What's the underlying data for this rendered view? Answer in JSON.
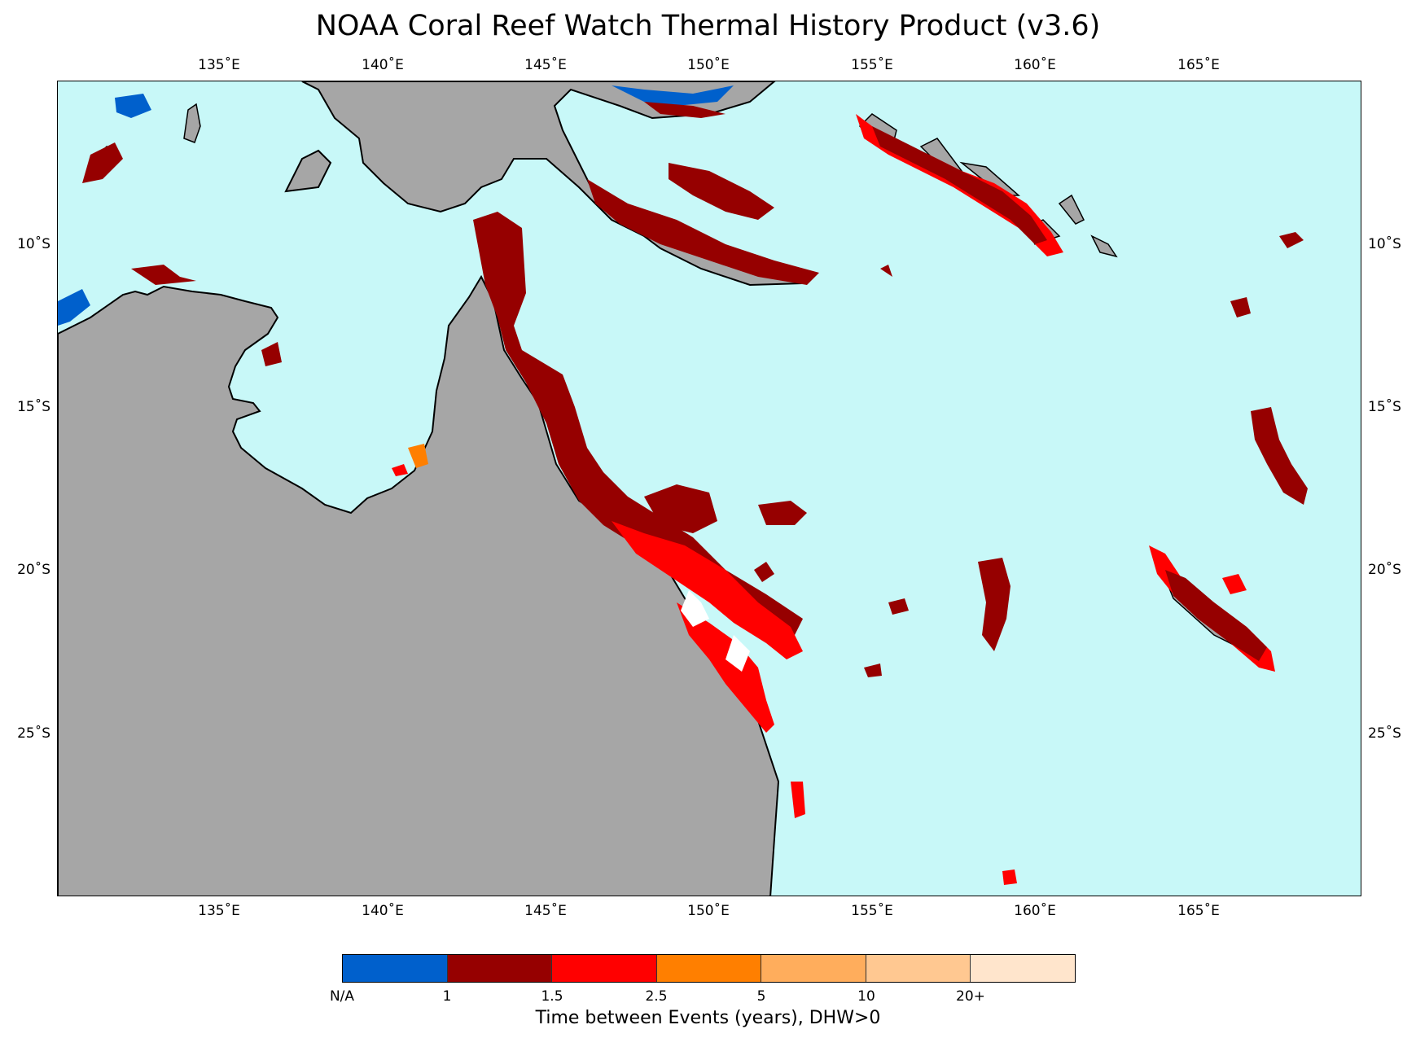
{
  "title": "NOAA Coral Reef Watch Thermal History Product (v3.6)",
  "map": {
    "lon_range": [
      130.0,
      170.0
    ],
    "lat_range": [
      -30.0,
      -5.0
    ],
    "ocean_color": "#c8f8f8",
    "land_color": "#a6a6a6",
    "x_ticks": [
      "135˚E",
      "140˚E",
      "145˚E",
      "150˚E",
      "155˚E",
      "160˚E",
      "165˚E"
    ],
    "y_ticks": [
      "10˚S",
      "15˚S",
      "20˚S",
      "25˚S"
    ]
  },
  "colorbar": {
    "colors": [
      "#0060cc",
      "#960000",
      "#ff0000",
      "#ff7f00",
      "#ffad5c",
      "#ffc891",
      "#ffe5cc"
    ],
    "labels": [
      "N/A",
      "1",
      "1.5",
      "2.5",
      "5",
      "10",
      "20+"
    ],
    "title": "Time between Events (years), DHW>0"
  }
}
